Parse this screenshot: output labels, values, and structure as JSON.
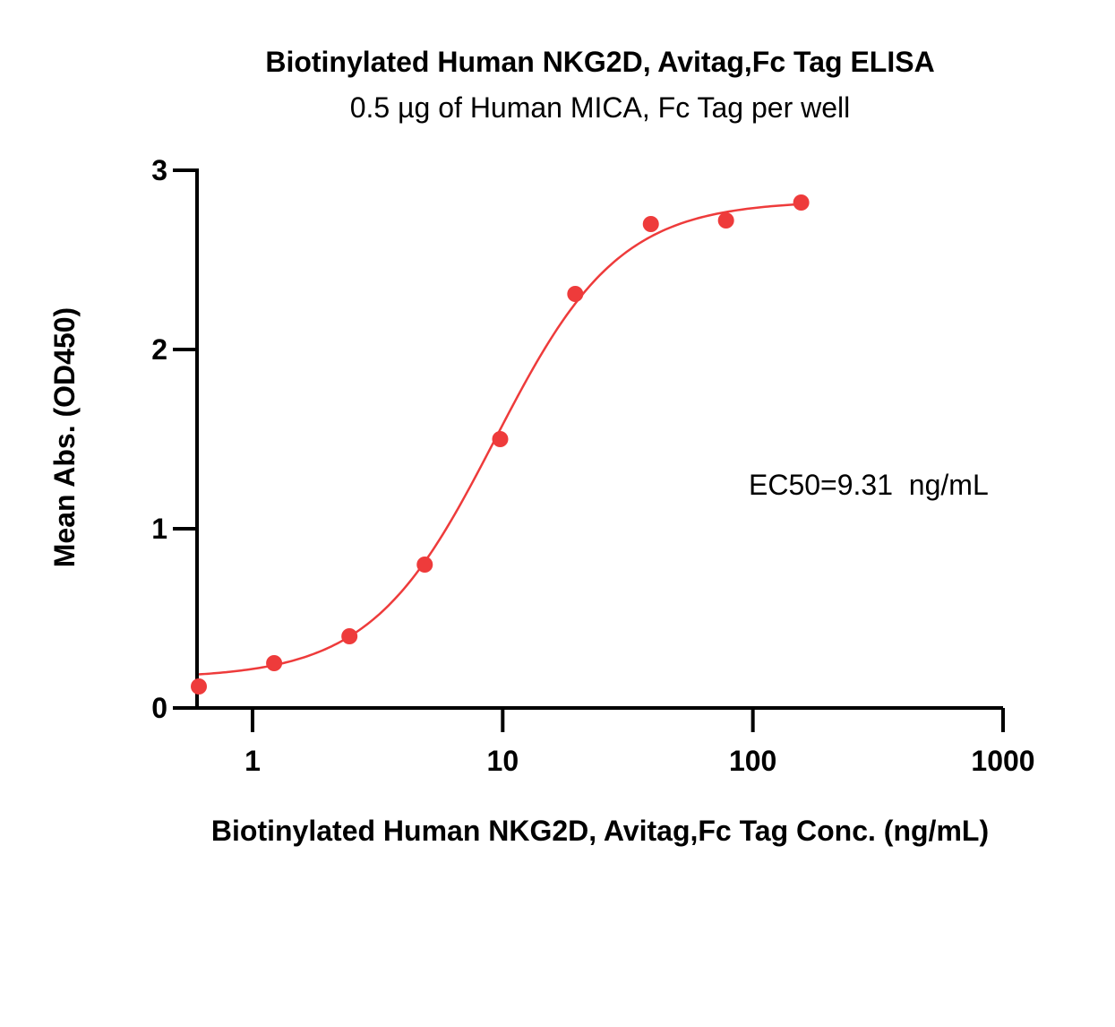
{
  "chart_data": {
    "type": "scatter",
    "title": "Biotinylated Human NKG2D, Avitag,Fc Tag ELISA",
    "subtitle": "0.5 µg of Human MICA, Fc Tag per well",
    "xlabel": "Biotinylated Human NKG2D, Avitag,Fc Tag Conc. (ng/mL)",
    "ylabel": "Mean Abs. (OD450)",
    "x_scale": "log",
    "xlim": [
      0.6,
      1000
    ],
    "ylim": [
      0,
      3
    ],
    "x_ticks": [
      {
        "value": 1,
        "label": "1"
      },
      {
        "value": 10,
        "label": "10"
      },
      {
        "value": 100,
        "label": "100"
      },
      {
        "value": 1000,
        "label": "1000"
      }
    ],
    "y_ticks": [
      {
        "value": 0,
        "label": "0"
      },
      {
        "value": 1,
        "label": "1"
      },
      {
        "value": 2,
        "label": "2"
      },
      {
        "value": 3,
        "label": "3"
      }
    ],
    "grid": false,
    "color": "#ee3b3b",
    "series": [
      {
        "x": [
          0.61,
          1.22,
          2.44,
          4.88,
          9.77,
          19.5,
          39.1,
          78.1,
          156
        ],
        "y": [
          0.12,
          0.25,
          0.4,
          0.8,
          1.5,
          2.31,
          2.7,
          2.72,
          2.82
        ]
      }
    ],
    "fit": {
      "bottom": 0.165,
      "top": 2.83,
      "ec50": 9.31,
      "hill": 1.75,
      "x_range": [
        0.61,
        156
      ]
    },
    "annotation": "EC50=9.31  ng/mL"
  }
}
